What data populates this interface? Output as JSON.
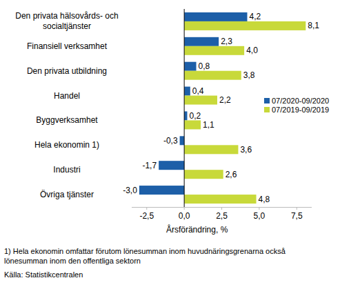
{
  "chart_data": {
    "type": "bar",
    "orientation": "horizontal",
    "categories": [
      "Den privata hälsovårds- och\nsocialtjänster",
      "Finansiell verksamhet",
      "Den privata utbildning",
      "Handel",
      "Byggverksamhet",
      "Hela ekonomin 1)",
      "Industri",
      "Övriga tjänster"
    ],
    "series": [
      {
        "name": "07/2020-09/2020",
        "color": "#1d5fa8",
        "values": [
          4.2,
          2.3,
          0.8,
          0.4,
          0.2,
          -0.3,
          -1.7,
          -3.0
        ],
        "value_labels": [
          "4,2",
          "2,3",
          "0,8",
          "0,4",
          "0,2",
          "-0,3",
          "-1,7",
          "-3,0"
        ]
      },
      {
        "name": "07/2019-09/2019",
        "color": "#c8d93a",
        "values": [
          8.1,
          4.0,
          3.8,
          2.2,
          1.1,
          3.6,
          2.6,
          4.8
        ],
        "value_labels": [
          "8,1",
          "4,0",
          "3,8",
          "2,2",
          "1,1",
          "3,6",
          "2,6",
          "4,8"
        ]
      }
    ],
    "x_label": "Årsförändring, %",
    "xlim": [
      -3.5,
      8.5
    ],
    "xticks": [
      {
        "value": -2.5,
        "label": "-2,5"
      },
      {
        "value": 0,
        "label": "0,0"
      },
      {
        "value": 2.5,
        "label": "2,5"
      },
      {
        "value": 5,
        "label": "5,0"
      },
      {
        "value": 7.5,
        "label": "7,5"
      }
    ],
    "grid": false,
    "legend": "right",
    "data_labels": true,
    "notes": [
      "1) Hela ekonomin omfattar förutom lönesumman inom huvudnäringsgrenarna också",
      "lönesumman inom den offentliga sektorn"
    ],
    "source": "Källa: Statistikcentralen"
  }
}
